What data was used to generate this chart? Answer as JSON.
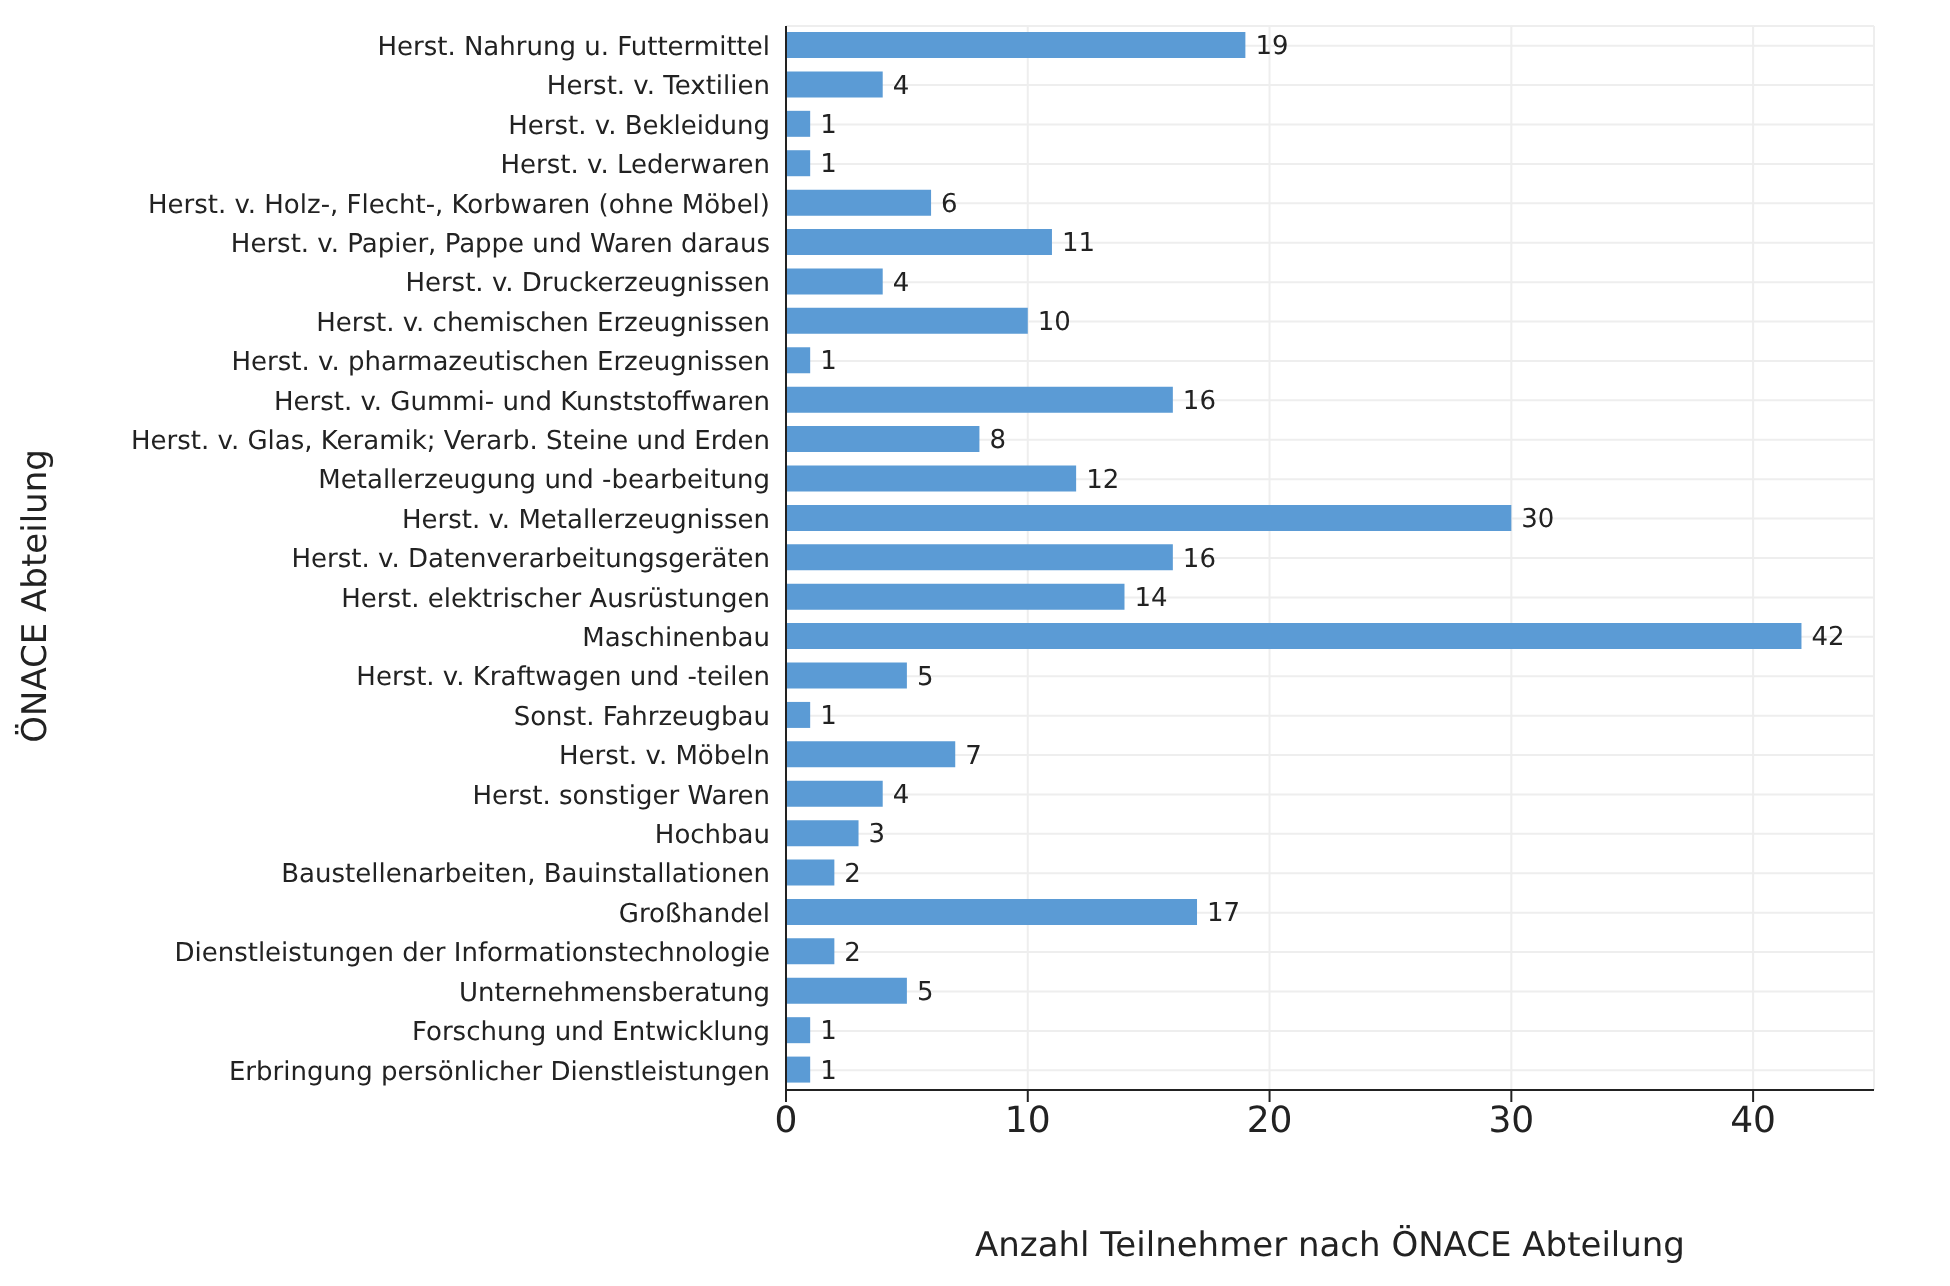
{
  "chart_data": {
    "type": "bar",
    "orientation": "horizontal",
    "xlabel": "Anzahl Teilnehmer nach ÖNACE Abteilung",
    "ylabel": "ÖNACE Abteilung",
    "categories": [
      "Herst. Nahrung u. Futtermittel",
      "Herst. v. Textilien",
      "Herst. v. Bekleidung",
      "Herst. v. Lederwaren",
      "Herst. v. Holz-, Flecht-, Korbwaren (ohne Möbel)",
      "Herst. v. Papier, Pappe und Waren daraus",
      "Herst. v. Druckerzeugnissen",
      "Herst. v. chemischen Erzeugnissen",
      "Herst. v. pharmazeutischen Erzeugnissen",
      "Herst. v. Gummi- und Kunststoffwaren",
      "Herst. v. Glas, Keramik; Verarb. Steine und Erden",
      "Metallerzeugung und -bearbeitung",
      "Herst. v. Metallerzeugnissen",
      "Herst. v. Datenverarbeitungsgeräten",
      "Herst. elektrischer Ausrüstungen ",
      "Maschinenbau",
      "Herst. v. Kraftwagen und -teilen",
      "Sonst. Fahrzeugbau",
      "Herst. v. Möbeln",
      "Herst. sonstiger Waren",
      "Hochbau",
      "Baustellenarbeiten, Bauinstallationen",
      "Großhandel",
      "Dienstleistungen der Informationstechnologie",
      "Unternehmensberatung",
      "Forschung und Entwicklung",
      "Erbringung persönlicher Dienstleistungen"
    ],
    "values": [
      19,
      4,
      1,
      1,
      6,
      11,
      4,
      10,
      1,
      16,
      8,
      12,
      30,
      16,
      14,
      42,
      5,
      1,
      7,
      4,
      3,
      2,
      17,
      2,
      5,
      1,
      1
    ],
    "color": "#5b9bd5",
    "xlim": [
      0,
      45
    ],
    "xticks": [
      0,
      10,
      20,
      30,
      40
    ],
    "grid": true,
    "data_labels": true
  }
}
